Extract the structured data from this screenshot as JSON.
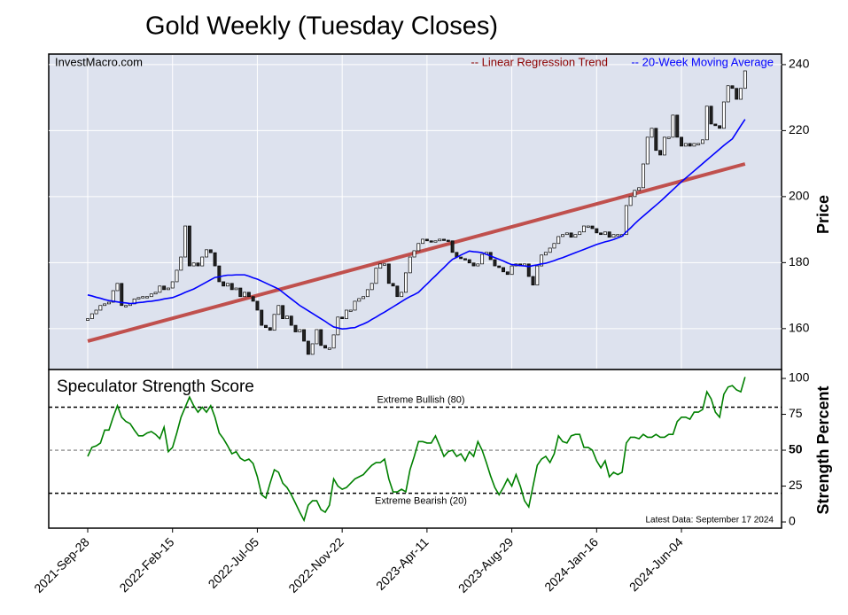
{
  "chart_data": [
    {
      "type": "candlestick",
      "title": "Gold Weekly (Tuesday Closes)",
      "source": "InvestMacro.com",
      "ylabel": "Price",
      "categories": [
        "2021-Sep-28",
        null,
        null,
        null,
        null,
        null,
        null,
        null,
        null,
        null,
        null,
        null,
        null,
        null,
        null,
        null,
        null,
        null,
        null,
        null,
        "2022-Feb-15",
        null,
        null,
        null,
        null,
        null,
        null,
        null,
        null,
        null,
        null,
        null,
        null,
        null,
        null,
        null,
        null,
        null,
        null,
        null,
        "2022-Jul-05",
        null,
        null,
        null,
        null,
        null,
        null,
        null,
        null,
        null,
        null,
        null,
        null,
        null,
        null,
        null,
        null,
        null,
        null,
        null,
        "2022-Nov-22",
        null,
        null,
        null,
        null,
        null,
        null,
        null,
        null,
        null,
        null,
        null,
        null,
        null,
        null,
        null,
        null,
        null,
        null,
        null,
        "2023-Apr-11",
        null,
        null,
        null,
        null,
        null,
        null,
        null,
        null,
        null,
        null,
        null,
        null,
        null,
        null,
        null,
        null,
        null,
        null,
        null,
        "2023-Aug-29",
        null,
        null,
        null,
        null,
        null,
        null,
        null,
        null,
        null,
        null,
        null,
        null,
        null,
        null,
        null,
        null,
        null,
        null,
        null,
        "2024-Jan-16",
        null,
        null,
        null,
        null,
        null,
        null,
        null,
        null,
        null,
        null,
        null,
        null,
        null,
        null,
        null,
        null,
        null,
        null,
        null,
        "2024-Jun-04",
        null,
        null,
        null,
        null,
        null,
        null,
        null,
        null,
        null,
        null,
        null,
        null,
        null,
        null,
        null
      ],
      "open": [
        162.5,
        163,
        164.5,
        165.6,
        167,
        167.5,
        168,
        171.5,
        173.7,
        167,
        167,
        167.5,
        169,
        169.4,
        169.7,
        169.7,
        170.5,
        171,
        172.9,
        171.8,
        172.3,
        174.2,
        177.7,
        181.7,
        191.1,
        179,
        179.9,
        179,
        181.7,
        183.9,
        183,
        179,
        174.2,
        172.9,
        173.7,
        171.8,
        172.3,
        169.7,
        171,
        169.7,
        168.3,
        165.6,
        161,
        160.3,
        159.5,
        164.3,
        167,
        163,
        163.8,
        161,
        159,
        159.7,
        156.2,
        152.2,
        155.4,
        159.7,
        154.9,
        154.1,
        154.1,
        158.1,
        163.5,
        163,
        165.6,
        165.6,
        168.3,
        169.1,
        169.7,
        171.8,
        173.7,
        178.3,
        179.6,
        179.6,
        173.7,
        172.9,
        169.7,
        171,
        176.9,
        181.7,
        183.6,
        185.8,
        187.1,
        186.6,
        186.3,
        186.6,
        187.1,
        186.8,
        186.6,
        183.1,
        181.7,
        181.2,
        180.9,
        179.9,
        179,
        179.6,
        182.5,
        183.1,
        180.9,
        179,
        178.5,
        177.2,
        176.4,
        179,
        179.6,
        179,
        179.6,
        175.8,
        173.2,
        179,
        182.3,
        183.1,
        184.4,
        185.8,
        187.9,
        188.5,
        189,
        187.7,
        188.5,
        189.3,
        191.1,
        191.1,
        190.3,
        189,
        188.5,
        189.3,
        187.7,
        188.5,
        188.5,
        188.5,
        197.3,
        200,
        201.9,
        202.7,
        209.9,
        218,
        220.7,
        214,
        212.6,
        218,
        218,
        224.7,
        218,
        215.3,
        216.1,
        215.3,
        216.1,
        216.1,
        217.2,
        227.4,
        222,
        221.5,
        220.7,
        228.7,
        233.6,
        232.8,
        229.5,
        232.8
      ],
      "close": [
        163,
        164.5,
        165.6,
        167,
        167.5,
        168,
        171.5,
        173.7,
        167,
        167,
        167.5,
        169,
        169.4,
        169.7,
        169.7,
        170.5,
        171,
        172.9,
        171.8,
        172.3,
        174.2,
        177.7,
        181.7,
        191.1,
        179,
        179.9,
        179,
        181.7,
        183.9,
        183,
        179,
        174.2,
        172.9,
        173.7,
        171.8,
        172.3,
        169.7,
        171,
        169.7,
        168.3,
        165.6,
        161,
        160.3,
        159.5,
        164.3,
        167,
        163,
        163.8,
        161,
        159,
        159.7,
        156.2,
        152.2,
        155.4,
        159.7,
        154.9,
        154.1,
        154.1,
        158.1,
        163.5,
        163,
        165.6,
        165.6,
        168.3,
        169.1,
        169.7,
        171.8,
        173.7,
        178.3,
        179.6,
        179.6,
        173.7,
        172.9,
        169.7,
        171,
        176.9,
        181.7,
        183.6,
        185.8,
        187.1,
        186.6,
        186.3,
        186.6,
        187.1,
        186.8,
        186.6,
        183.1,
        181.7,
        181.2,
        180.9,
        179.9,
        179,
        179.6,
        182.5,
        183.1,
        180.9,
        179,
        178.5,
        177.2,
        176.4,
        179,
        179.6,
        179,
        179.6,
        175.8,
        173.2,
        179,
        182.3,
        183.1,
        184.4,
        185.8,
        187.9,
        188.5,
        189,
        187.7,
        188.5,
        189.3,
        191.1,
        191.1,
        190.3,
        189,
        188.5,
        189.3,
        187.7,
        188.5,
        188.5,
        188.5,
        197.3,
        200,
        201.9,
        202.7,
        209.9,
        218,
        220.7,
        214,
        212.6,
        218,
        218,
        224.7,
        218,
        215.3,
        216.1,
        215.3,
        216.1,
        216.1,
        217.2,
        227.4,
        222,
        221.5,
        220.7,
        228.7,
        233.6,
        232.8,
        229.5,
        232.8,
        238.1
      ],
      "up_color": "#ffffff",
      "down_color": "#222222",
      "moving_average": {
        "name": "-- 20-Week Moving Average",
        "color": "#0000ff",
        "values": [
          170.2,
          169.9,
          169.5,
          169.2,
          168.8,
          168.5,
          168.3,
          168.1,
          167.9,
          167.8,
          167.6,
          167.7,
          167.9,
          168,
          168.2,
          168.3,
          168.5,
          168.7,
          169,
          169.2,
          169.4,
          169.9,
          170.4,
          171,
          171.5,
          172,
          172.7,
          173.4,
          174.1,
          174.8,
          175.5,
          175.7,
          176,
          176.2,
          176.2,
          176.3,
          176.3,
          176.3,
          175.9,
          175.4,
          175,
          174.4,
          173.8,
          173.2,
          172.6,
          172,
          171,
          170,
          169,
          168,
          167,
          166.2,
          165.4,
          164.6,
          163.8,
          163,
          162.2,
          161.3,
          160.5,
          160.2,
          159.9,
          160,
          160.2,
          160.3,
          160.9,
          161.4,
          162,
          162.8,
          163.5,
          164.3,
          165,
          165.8,
          166.6,
          167.4,
          168.2,
          169,
          169.7,
          170.3,
          171,
          172.3,
          173.5,
          174.8,
          176,
          177.3,
          178.5,
          179.8,
          181,
          181.6,
          182.3,
          182.9,
          183.5,
          183.3,
          183.2,
          183,
          182.5,
          182,
          181.5,
          181,
          180.5,
          179.9,
          179.4,
          179.3,
          179.1,
          179,
          178.8,
          179.1,
          179.3,
          179.6,
          179.8,
          180.2,
          180.6,
          181.1,
          181.5,
          182,
          182.5,
          183,
          183.5,
          184,
          184.5,
          185,
          185.5,
          185.9,
          186.3,
          186.6,
          187,
          187.5,
          188,
          189.3,
          190.5,
          191.8,
          193,
          194.1,
          195.2,
          196.3,
          197.4,
          198.5,
          199.7,
          200.9,
          202.1,
          203.3,
          204.5,
          205.6,
          206.7,
          207.8,
          208.9,
          210,
          211.1,
          212.2,
          213.3,
          214.4,
          215.5,
          216.5,
          217.5,
          219.5,
          221.5,
          223.4
        ]
      },
      "trend": {
        "name": "-- Linear Regression Trend",
        "color": "#c0504d",
        "start": 156.2,
        "end": 209.9
      },
      "ylim": [
        147.6,
        243.2
      ],
      "yticks": [
        160,
        180,
        200,
        220,
        240
      ],
      "grid": true
    },
    {
      "type": "line",
      "title": "Speculator Strength Score",
      "note": "Latest Data: September 17 2024",
      "ylabel": "Strength Percent",
      "color": "#008000",
      "values": [
        45.7,
        52,
        53,
        55,
        64,
        64,
        73,
        81,
        73,
        70,
        68.5,
        64,
        60,
        60,
        62,
        63,
        61,
        58,
        66,
        49,
        52,
        62,
        73,
        80,
        87,
        81,
        76.5,
        80,
        76.5,
        81,
        73,
        62,
        58,
        53,
        47.5,
        49,
        44.4,
        42.6,
        43.8,
        40.7,
        31.5,
        19,
        16.7,
        27,
        36.4,
        34.6,
        27,
        24,
        19,
        13,
        6.8,
        1.2,
        11.7,
        14.8,
        14.8,
        8.6,
        6.8,
        11.7,
        30,
        25,
        22.8,
        24,
        27,
        30,
        31.5,
        33,
        36.4,
        39.5,
        41.4,
        41.4,
        43.8,
        30,
        21,
        21,
        22.8,
        21,
        36.4,
        45.7,
        56,
        56,
        55,
        55,
        60,
        53,
        45.7,
        49,
        50,
        45.7,
        47.5,
        42.6,
        49,
        45.7,
        56,
        50,
        41.4,
        32,
        24,
        19,
        24,
        30,
        25,
        33,
        25,
        14.8,
        10.5,
        25,
        39.5,
        43.8,
        45.7,
        41.4,
        47.5,
        60,
        56,
        55,
        60,
        61,
        61,
        52,
        52,
        50,
        42.6,
        37.7,
        42.6,
        31.5,
        34.6,
        33,
        34.6,
        55,
        59,
        59,
        58,
        61,
        59,
        59,
        61,
        59,
        59,
        61,
        61,
        70,
        73,
        73,
        71.6,
        76.5,
        76.5,
        78.4,
        90.7,
        85.8,
        76.5,
        73,
        89,
        94,
        95,
        92,
        90.7,
        101
      ],
      "thresholds": [
        {
          "value": 80,
          "label": "Extreme Bullish (80)"
        },
        {
          "value": 20,
          "label": "Extreme Bearish (20)"
        }
      ],
      "midline": 50,
      "ylim": [
        -4.3,
        106.2
      ],
      "yticks": [
        0,
        25,
        50,
        75,
        100
      ]
    }
  ]
}
